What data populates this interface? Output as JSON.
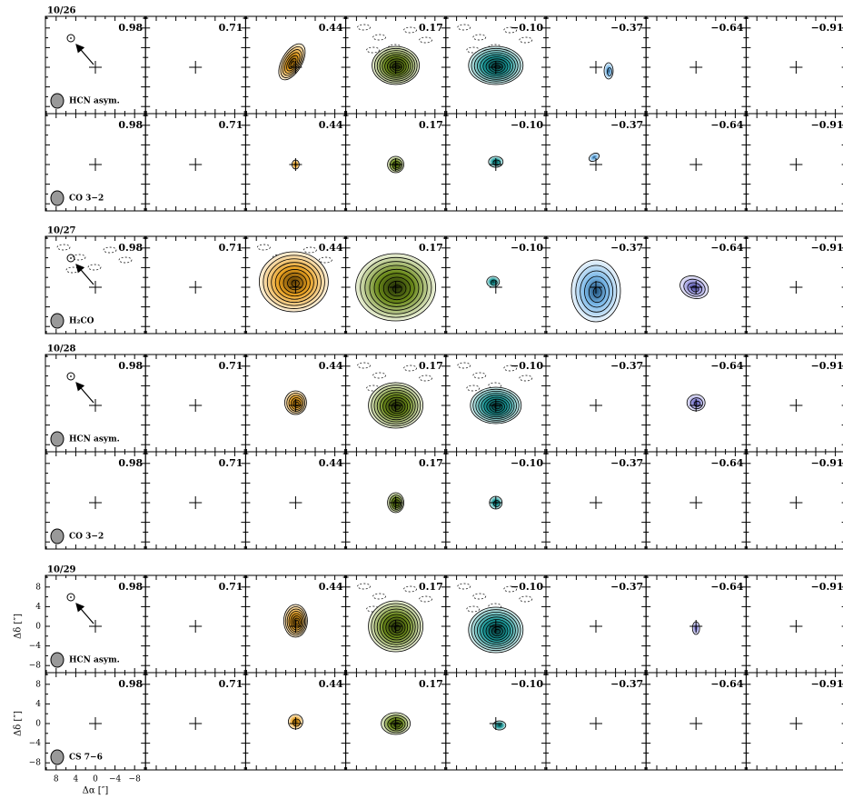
{
  "velocities": [
    "0.98",
    "0.71",
    "0.44",
    "0.17",
    "−0.10",
    "−0.37",
    "−0.64",
    "−0.91"
  ],
  "groups": [
    {
      "date": "10/26",
      "rows": [
        {
          "label": "HCN asym."
        },
        {
          "label": "CO 3−2"
        }
      ]
    },
    {
      "date": "10/27",
      "rows": [
        {
          "label": "H₂CO"
        }
      ]
    },
    {
      "date": "10/28",
      "rows": [
        {
          "label": "HCN asym."
        },
        {
          "label": "CO 3−2"
        }
      ]
    },
    {
      "date": "10/29",
      "rows": [
        {
          "label": "HCN asym."
        },
        {
          "label": "CS 7−6"
        }
      ]
    }
  ],
  "y_axis": {
    "label": "Δδ [″]",
    "ticks": [
      "8",
      "4",
      "0",
      "−4",
      "−8"
    ]
  },
  "x_axis": {
    "label": "Δα [″]",
    "ticks": [
      "8",
      "4",
      "0",
      "−4",
      "−8"
    ]
  }
}
